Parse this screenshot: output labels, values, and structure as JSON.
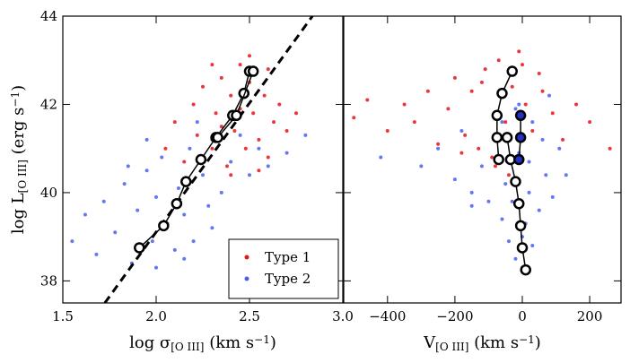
{
  "chart_data": [
    {
      "type": "scatter",
      "xlabel": [
        [
          "log σ",
          "base"
        ],
        [
          "[O III]",
          "sub"
        ],
        [
          " (km s",
          "base"
        ],
        [
          "−1",
          "sup"
        ],
        [
          ")",
          "base"
        ]
      ],
      "ylabel": [
        [
          "log L",
          "base"
        ],
        [
          "[O III]",
          "sub"
        ],
        [
          " (erg s",
          "base"
        ],
        [
          "−1",
          "sup"
        ],
        [
          ")",
          "base"
        ]
      ],
      "xlim": [
        1.5,
        3.0
      ],
      "ylim": [
        37.5,
        44
      ],
      "xticks": [
        1.5,
        {
          "value": 2.0,
          "label": "2.0"
        },
        2.5,
        {
          "value": 3.0,
          "label": "3.0"
        }
      ],
      "yticks": [
        38,
        40,
        42,
        44
      ],
      "show_ytick_labels": true,
      "legend": "lower right",
      "series": [
        {
          "name": "Type 2",
          "color": "#4a5ef0",
          "x": [
            1.55,
            1.62,
            1.68,
            1.72,
            1.78,
            1.83,
            1.87,
            1.9,
            1.95,
            1.98,
            2.0,
            2.03,
            2.06,
            2.1,
            2.12,
            2.15,
            2.18,
            2.2,
            2.25,
            2.28,
            2.3,
            2.35,
            2.4,
            2.45,
            2.5,
            2.55,
            2.6,
            2.7,
            2.8,
            1.85,
            2.0,
            2.15,
            2.3,
            1.95,
            2.22
          ],
          "values": [
            38.9,
            39.5,
            38.6,
            39.8,
            39.1,
            40.2,
            38.4,
            39.6,
            40.5,
            38.9,
            39.9,
            40.8,
            39.3,
            38.7,
            40.1,
            39.5,
            41.0,
            38.9,
            40.4,
            39.7,
            41.2,
            40.0,
            40.7,
            41.3,
            40.4,
            41.0,
            40.6,
            40.9,
            41.3,
            40.6,
            38.3,
            38.5,
            39.2,
            41.2,
            41.6
          ]
        },
        {
          "name": "Type 1",
          "color": "#e8141a",
          "x": [
            2.05,
            2.1,
            2.15,
            2.2,
            2.22,
            2.25,
            2.3,
            2.32,
            2.35,
            2.38,
            2.4,
            2.42,
            2.45,
            2.48,
            2.5,
            2.52,
            2.55,
            2.58,
            2.6,
            2.63,
            2.66,
            2.7,
            2.75,
            2.3,
            2.4,
            2.5,
            2.6,
            2.35,
            2.55,
            2.45
          ],
          "values": [
            41.0,
            41.6,
            40.7,
            42.0,
            41.3,
            42.4,
            41.0,
            41.8,
            42.6,
            40.6,
            42.2,
            41.4,
            42.9,
            41.0,
            42.5,
            41.8,
            41.2,
            42.2,
            40.8,
            41.6,
            42.0,
            41.4,
            41.8,
            42.9,
            40.4,
            43.1,
            42.8,
            41.5,
            40.5,
            41.9
          ]
        }
      ],
      "medians": [
        {
          "color": "#ffffff",
          "x": [
            1.91,
            2.04,
            2.11,
            2.16,
            2.24,
            2.32,
            2.41,
            2.47,
            2.5
          ],
          "values": [
            38.75,
            39.25,
            39.75,
            40.25,
            40.75,
            41.25,
            41.75,
            42.25,
            42.75
          ]
        },
        {
          "color": "#ffffff",
          "x": [
            2.33,
            2.43,
            2.52
          ],
          "values": [
            41.25,
            41.75,
            42.75
          ]
        }
      ],
      "line": {
        "x": [
          1.725,
          2.837
        ],
        "values": [
          37.5,
          44
        ]
      }
    },
    {
      "type": "scatter",
      "xlabel": [
        [
          "V",
          "base"
        ],
        [
          "[O III]",
          "sub"
        ],
        [
          " (km s",
          "base"
        ],
        [
          "−1",
          "sup"
        ],
        [
          ")",
          "base"
        ]
      ],
      "xlim": [
        -530,
        293
      ],
      "ylim": [
        37.5,
        44
      ],
      "xticks": [
        {
          "value": -400,
          "label": "−400"
        },
        {
          "value": -200,
          "label": "−200"
        },
        0,
        200
      ],
      "yticks": [
        38,
        40,
        42,
        44
      ],
      "show_ytick_labels": false,
      "series": [
        {
          "color": "#e8141a",
          "x": [
            -500,
            -460,
            -400,
            -350,
            -320,
            -280,
            -250,
            -220,
            -200,
            -170,
            -150,
            -130,
            -110,
            -90,
            -70,
            -50,
            -30,
            -10,
            10,
            30,
            60,
            90,
            120,
            160,
            200,
            260,
            -80,
            -40,
            0,
            50,
            -120,
            -180
          ],
          "values": [
            41.7,
            42.1,
            41.4,
            42.0,
            41.6,
            42.3,
            41.1,
            41.9,
            42.6,
            41.3,
            42.3,
            41.0,
            42.8,
            40.8,
            43.0,
            41.6,
            42.4,
            43.2,
            42.0,
            41.4,
            42.3,
            41.8,
            41.2,
            42.0,
            41.6,
            41.0,
            40.6,
            40.4,
            42.9,
            42.7,
            42.5,
            40.9
          ]
        },
        {
          "color": "#4a5ef0",
          "x": [
            -420,
            -300,
            -250,
            -200,
            -180,
            -150,
            -120,
            -100,
            -80,
            -60,
            -50,
            -40,
            -30,
            -20,
            -10,
            0,
            10,
            20,
            30,
            50,
            70,
            90,
            110,
            130,
            -60,
            -20,
            20,
            60,
            0,
            -10,
            30,
            -150,
            80
          ],
          "values": [
            40.8,
            40.6,
            41.0,
            40.3,
            41.4,
            40.0,
            40.6,
            39.8,
            41.2,
            39.4,
            40.2,
            38.9,
            39.8,
            38.5,
            40.9,
            38.3,
            39.3,
            40.0,
            38.8,
            39.6,
            40.4,
            39.9,
            41.0,
            40.4,
            41.6,
            41.9,
            40.7,
            41.2,
            39.0,
            42.0,
            41.6,
            39.7,
            42.2
          ]
        }
      ],
      "medians": [
        {
          "color": "#ffffff",
          "x": [
            -30,
            -60,
            -75,
            -75,
            -70
          ],
          "values": [
            42.75,
            42.25,
            41.75,
            41.25,
            40.75
          ]
        },
        {
          "color": "#ffffff",
          "x": [
            -45,
            -35,
            -20,
            -10,
            -5,
            0,
            10
          ],
          "values": [
            41.25,
            40.75,
            40.25,
            39.75,
            39.25,
            38.75,
            38.25
          ]
        },
        {
          "color": "#2030c8",
          "x": [
            -5,
            -5,
            -10
          ],
          "values": [
            41.75,
            41.25,
            40.75
          ]
        }
      ]
    }
  ]
}
